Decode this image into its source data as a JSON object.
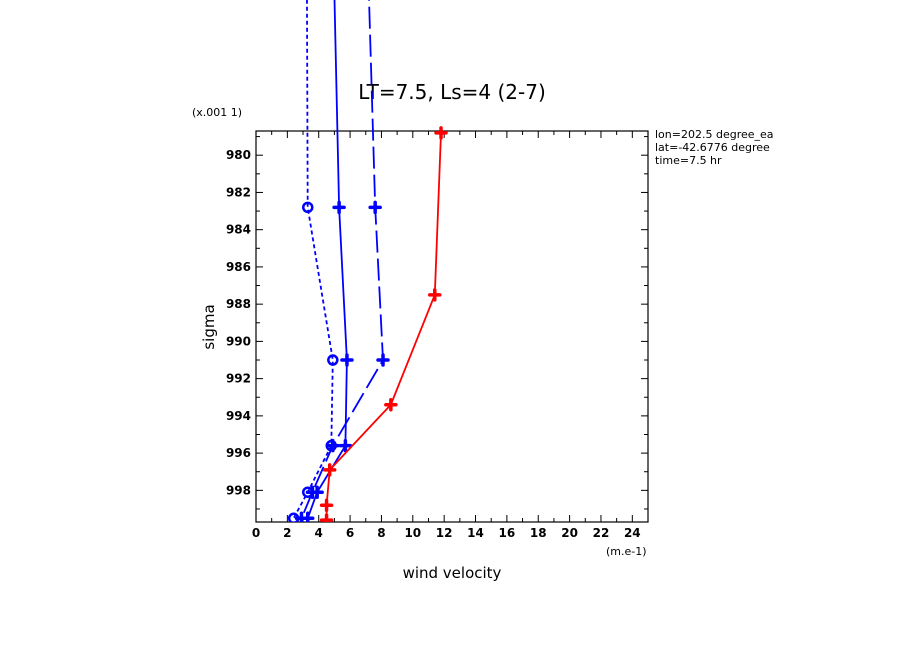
{
  "chart_data": {
    "type": "line",
    "title": "LT=7.5, Ls=4 (2-7)",
    "xlabel": "wind velocity",
    "ylabel": "sigma",
    "x_unit": "(m.e-1)",
    "y_unit": "(x.001 1)",
    "xlim": [
      0,
      25
    ],
    "ylim": [
      999.7,
      978.7
    ],
    "x_ticks": [
      "0",
      "2",
      "4",
      "6",
      "8",
      "10",
      "12",
      "14",
      "16",
      "18",
      "20",
      "22",
      "24"
    ],
    "y_ticks": [
      "980",
      "982",
      "984",
      "986",
      "988",
      "990",
      "992",
      "994",
      "996",
      "998"
    ],
    "annotations": [
      "lon=202.5 degree_ea",
      "lat=-42.6776 degree",
      "time=7.5 hr"
    ],
    "series": [
      {
        "color": "#ff0000",
        "dash": "solid",
        "marker": "plus",
        "points": [
          [
            11.8,
            978.8
          ],
          [
            11.4,
            987.5
          ],
          [
            8.6,
            993.4
          ],
          [
            4.7,
            996.9
          ],
          [
            4.5,
            998.8
          ],
          [
            4.5,
            999.6
          ]
        ]
      },
      {
        "color": "#0000ff",
        "dash": "solid",
        "marker": "plus",
        "points": [
          [
            4.7,
            960.0
          ],
          [
            5.3,
            982.8
          ],
          [
            5.8,
            991.0
          ],
          [
            5.7,
            995.6
          ],
          [
            3.9,
            998.1
          ],
          [
            3.3,
            999.5
          ]
        ]
      },
      {
        "color": "#0000ff",
        "dash": "long-dash",
        "marker": "plus",
        "points": [
          [
            6.8,
            960.0
          ],
          [
            7.6,
            982.8
          ],
          [
            8.1,
            991.0
          ],
          [
            4.9,
            995.6
          ],
          [
            3.6,
            998.1
          ],
          [
            2.9,
            999.5
          ]
        ]
      },
      {
        "color": "#0000ff",
        "dash": "short-dash",
        "marker": "circle",
        "points": [
          [
            3.2,
            960.0
          ],
          [
            3.3,
            982.8
          ],
          [
            4.9,
            991.0
          ],
          [
            4.8,
            995.6
          ],
          [
            3.3,
            998.1
          ],
          [
            2.4,
            999.5
          ]
        ]
      }
    ]
  }
}
